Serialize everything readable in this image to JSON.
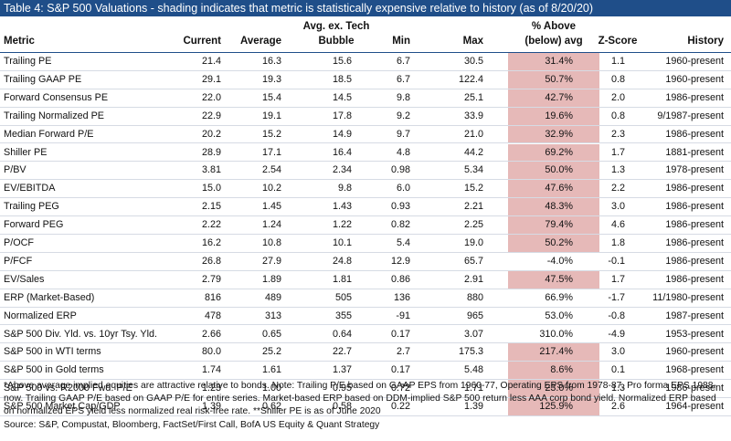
{
  "title": "Table 4: S&P 500 Valuations - shading indicates that metric is statistically expensive relative to history (as of 8/20/20)",
  "headers": {
    "metric": "Metric",
    "current": "Current",
    "average": "Average",
    "bubble_1": "Avg. ex. Tech",
    "bubble_2": "Bubble",
    "min": "Min",
    "max": "Max",
    "pct_1": "% Above",
    "pct_2": "(below) avg",
    "z": "Z-Score",
    "history": "History"
  },
  "shade_color": "#e6b9b8",
  "header_color": "#1f4e89",
  "rows": [
    {
      "metric": "Trailing PE",
      "current": "21.4",
      "average": "16.3",
      "bubble": "15.6",
      "min": "6.7",
      "max": "30.5",
      "pct": "31.4%",
      "z": "1.1",
      "history": "1960-present",
      "shaded": true
    },
    {
      "metric": "Trailing GAAP PE",
      "current": "29.1",
      "average": "19.3",
      "bubble": "18.5",
      "min": "6.7",
      "max": "122.4",
      "pct": "50.7%",
      "z": "0.8",
      "history": "1960-present",
      "shaded": true
    },
    {
      "metric": "Forward Consensus PE",
      "current": "22.0",
      "average": "15.4",
      "bubble": "14.5",
      "min": "9.8",
      "max": "25.1",
      "pct": "42.7%",
      "z": "2.0",
      "history": "1986-present",
      "shaded": true
    },
    {
      "metric": "Trailing Normalized PE",
      "current": "22.9",
      "average": "19.1",
      "bubble": "17.8",
      "min": "9.2",
      "max": "33.9",
      "pct": "19.6%",
      "z": "0.8",
      "history": "9/1987-present",
      "shaded": true
    },
    {
      "metric": "Median Forward P/E",
      "current": "20.2",
      "average": "15.2",
      "bubble": "14.9",
      "min": "9.7",
      "max": "21.0",
      "pct": "32.9%",
      "z": "2.3",
      "history": "1986-present",
      "shaded": true
    },
    {
      "metric": "Shiller PE",
      "current": "28.9",
      "average": "17.1",
      "bubble": "16.4",
      "min": "4.8",
      "max": "44.2",
      "pct": "69.2%",
      "z": "1.7",
      "history": "1881-present",
      "shaded": true
    },
    {
      "metric": "P/BV",
      "current": "3.81",
      "average": "2.54",
      "bubble": "2.34",
      "min": "0.98",
      "max": "5.34",
      "pct": "50.0%",
      "z": "1.3",
      "history": "1978-present",
      "shaded": true
    },
    {
      "metric": "EV/EBITDA",
      "current": "15.0",
      "average": "10.2",
      "bubble": "9.8",
      "min": "6.0",
      "max": "15.2",
      "pct": "47.6%",
      "z": "2.2",
      "history": "1986-present",
      "shaded": true
    },
    {
      "metric": "Trailing PEG",
      "current": "2.15",
      "average": "1.45",
      "bubble": "1.43",
      "min": "0.93",
      "max": "2.21",
      "pct": "48.3%",
      "z": "3.0",
      "history": "1986-present",
      "shaded": true
    },
    {
      "metric": "Forward PEG",
      "current": "2.22",
      "average": "1.24",
      "bubble": "1.22",
      "min": "0.82",
      "max": "2.25",
      "pct": "79.4%",
      "z": "4.6",
      "history": "1986-present",
      "shaded": true
    },
    {
      "metric": "P/OCF",
      "current": "16.2",
      "average": "10.8",
      "bubble": "10.1",
      "min": "5.4",
      "max": "19.0",
      "pct": "50.2%",
      "z": "1.8",
      "history": "1986-present",
      "shaded": true
    },
    {
      "metric": "P/FCF",
      "current": "26.8",
      "average": "27.9",
      "bubble": "24.8",
      "min": "12.9",
      "max": "65.7",
      "pct": "-4.0%",
      "z": "-0.1",
      "history": "1986-present",
      "shaded": false
    },
    {
      "metric": "EV/Sales",
      "current": "2.79",
      "average": "1.89",
      "bubble": "1.81",
      "min": "0.86",
      "max": "2.91",
      "pct": "47.5%",
      "z": "1.7",
      "history": "1986-present",
      "shaded": true
    },
    {
      "metric": "ERP (Market-Based)",
      "current": "816",
      "average": "489",
      "bubble": "505",
      "min": "136",
      "max": "880",
      "pct": "66.9%",
      "z": "-1.7",
      "history": "11/1980-present",
      "shaded": false
    },
    {
      "metric": "Normalized ERP",
      "current": "478",
      "average": "313",
      "bubble": "355",
      "min": "-91",
      "max": "965",
      "pct": "53.0%",
      "z": "-0.8",
      "history": "1987-present",
      "shaded": false
    },
    {
      "metric": "S&P 500 Div. Yld. vs. 10yr Tsy. Yld.",
      "current": "2.66",
      "average": "0.65",
      "bubble": "0.64",
      "min": "0.17",
      "max": "3.07",
      "pct": "310.0%",
      "z": "-4.9",
      "history": "1953-present",
      "shaded": false
    },
    {
      "metric": "S&P 500 in WTI terms",
      "current": "80.0",
      "average": "25.2",
      "bubble": "22.7",
      "min": "2.7",
      "max": "175.3",
      "pct": "217.4%",
      "z": "3.0",
      "history": "1960-present",
      "shaded": true
    },
    {
      "metric": "S&P 500 in Gold terms",
      "current": "1.74",
      "average": "1.61",
      "bubble": "1.37",
      "min": "0.17",
      "max": "5.48",
      "pct": "8.6%",
      "z": "0.1",
      "history": "1968-present",
      "shaded": true
    },
    {
      "metric": "S&P 500 vs. R2000 Fwd. P/E",
      "current": "1.23",
      "average": "1.00",
      "bubble": "0.95",
      "min": "0.72",
      "max": "1.71",
      "pct": "23.0%",
      "z": "1.3",
      "history": "1986-present",
      "shaded": true
    },
    {
      "metric": "S&P 500 Market Cap/GDP",
      "current": "1.39",
      "average": "0.62",
      "bubble": "0.58",
      "min": "0.22",
      "max": "1.39",
      "pct": "125.9%",
      "z": "2.6",
      "history": "1964-present",
      "shaded": true
    }
  ],
  "notes": [
    "*Above average implied equities are attractive relative to bonds. Note: Trailing P/E based on GAAP EPS from 1960-77, Operating EPS from 1978-87, Pro forma EPS 1988-now. Trailing GAAP P/E based on GAAP P/E for entire series. Market-based ERP based on DDM-implied S&P 500 return less AAA corp bond yield. Normalized ERP based on normalized EPS yield less normalized real risk-free rate. **Shiller PE is as of June 2020",
    "Source: S&P, Compustat, Bloomberg, FactSet/First Call, BofA US Equity & Quant Strategy"
  ]
}
